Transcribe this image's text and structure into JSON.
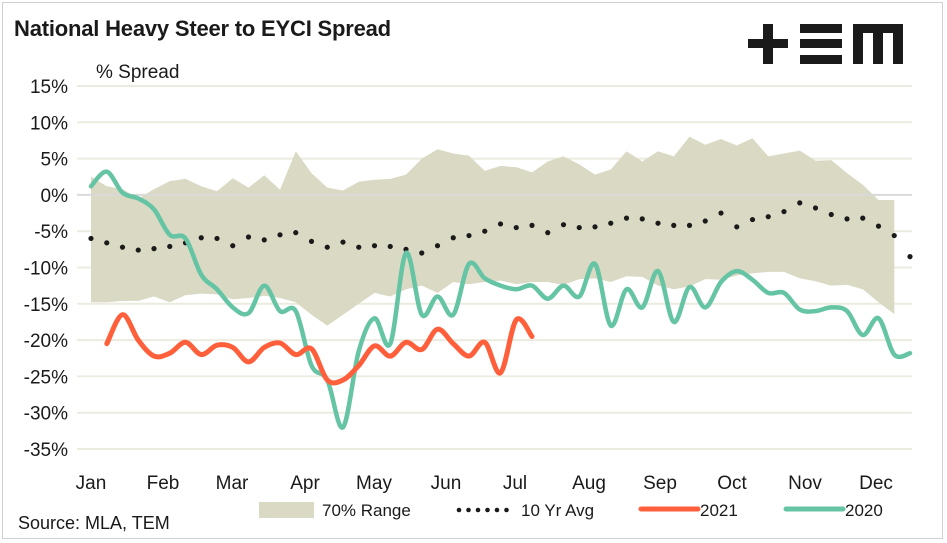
{
  "header": {
    "title": "National Heavy Steer to EYCI Spread",
    "logo_text": "+EM",
    "logo_icon": "tem-logo-icon"
  },
  "footer": {
    "source": "Source: MLA, TEM"
  },
  "colors": {
    "range_fill": "#d9d9c4",
    "avg_dots": "#1a1a1a",
    "series_2021": "#ff5f3a",
    "series_2020": "#64c4a4",
    "grid": "#ecebe0",
    "zero_line": "#d9d9d9"
  },
  "chart_data": {
    "type": "line",
    "title": "National Heavy Steer to EYCI Spread",
    "ylabel": "% Spread",
    "xlabel": "",
    "ylim": [
      -35,
      15
    ],
    "yticks": [
      15,
      10,
      5,
      0,
      -5,
      -10,
      -15,
      -20,
      -25,
      -30,
      -35
    ],
    "ytick_labels": [
      "15%",
      "10%",
      "5%",
      "0%",
      "-5%",
      "-10%",
      "-15%",
      "-20%",
      "-25%",
      "-30%",
      "-35%"
    ],
    "x_unit": "week of year",
    "xlim": [
      1,
      53
    ],
    "categories": [
      "Jan",
      "Feb",
      "Mar",
      "Apr",
      "May",
      "Jun",
      "Jul",
      "Aug",
      "Sep",
      "Oct",
      "Nov",
      "Dec"
    ],
    "grid": true,
    "legend_position": "bottom",
    "legend": [
      {
        "label": "70% Range",
        "kind": "area"
      },
      {
        "label": "10 Yr Avg",
        "kind": "dotted"
      },
      {
        "label": "2021",
        "kind": "line"
      },
      {
        "label": "2020",
        "kind": "line"
      }
    ],
    "range_upper": [
      2.5,
      1.2,
      0.8,
      -0.5,
      0.8,
      1.9,
      2.2,
      1.2,
      0.5,
      2.3,
      1.0,
      2.7,
      0.7,
      6.0,
      3.0,
      1.0,
      0.6,
      1.8,
      2.1,
      2.2,
      2.8,
      5.0,
      6.3,
      5.7,
      5.4,
      3.3,
      4.0,
      3.8,
      3.1,
      4.6,
      5.3,
      4.2,
      2.8,
      3.5,
      6.0,
      4.6,
      6.0,
      5.3,
      8.0,
      6.9,
      7.7,
      6.8,
      7.8,
      5.3,
      5.7,
      6.1,
      4.7,
      4.8,
      3.0,
      1.4,
      -0.7,
      -0.7
    ],
    "range_lower": [
      -14.8,
      -14.8,
      -14.6,
      -14.6,
      -14.0,
      -14.8,
      -13.8,
      -13.6,
      -13.7,
      -14.4,
      -14.2,
      -13.9,
      -14.2,
      -14.8,
      -16.5,
      -18.0,
      -16.5,
      -15.0,
      -13.5,
      -14.0,
      -13.0,
      -12.5,
      -13.5,
      -12.0,
      -12.3,
      -12.0,
      -11.8,
      -12.3,
      -12.0,
      -12.0,
      -12.4,
      -11.6,
      -11.5,
      -12.0,
      -11.2,
      -11.3,
      -12.5,
      -13.0,
      -12.6,
      -11.6,
      -11.7,
      -11.1,
      -10.8,
      -10.6,
      -10.6,
      -11.5,
      -11.9,
      -12.5,
      -12.4,
      -13.0,
      -14.8,
      -16.4
    ],
    "series": [
      {
        "name": "10 Yr Avg",
        "values": [
          -6.0,
          -6.6,
          -7.2,
          -7.6,
          -7.4,
          -7.1,
          -6.6,
          -5.9,
          -6.0,
          -7.0,
          -5.8,
          -6.2,
          -5.5,
          -5.2,
          -6.4,
          -7.2,
          -6.5,
          -7.2,
          -7.0,
          -7.1,
          -7.5,
          -8.0,
          -7.0,
          -5.9,
          -5.6,
          -5.0,
          -4.0,
          -4.5,
          -4.2,
          -5.2,
          -4.1,
          -4.5,
          -4.4,
          -3.9,
          -3.2,
          -3.3,
          -3.9,
          -4.2,
          -4.2,
          -3.6,
          -2.5,
          -4.4,
          -3.4,
          -3.0,
          -2.3,
          -1.1,
          -1.8,
          -2.7,
          -3.3,
          -3.2,
          -4.3,
          -5.6,
          -8.5
        ],
        "style": "dotted"
      },
      {
        "name": "2021",
        "values": [
          null,
          -20.5,
          -16.5,
          -20.0,
          -22.2,
          -21.8,
          -20.3,
          -22.0,
          -20.7,
          -21.0,
          -23.0,
          -21.0,
          -20.4,
          -22.0,
          -21.2,
          -25.5,
          -25.5,
          -23.5,
          -20.8,
          -22.2,
          -20.3,
          -21.3,
          -18.5,
          -20.5,
          -22.2,
          -20.3,
          -24.5,
          -17.2,
          -19.5
        ],
        "style": "solid"
      },
      {
        "name": "2020",
        "values": [
          1.2,
          3.2,
          0.3,
          -0.5,
          -2.0,
          -5.5,
          -6.0,
          -11.0,
          -13.0,
          -15.5,
          -16.3,
          -12.5,
          -16.0,
          -16.0,
          -23.5,
          -25.5,
          -32.0,
          -21.5,
          -17.0,
          -20.5,
          -8.0,
          -16.5,
          -14.0,
          -16.5,
          -9.5,
          -11.5,
          -12.5,
          -13.0,
          -12.5,
          -14.3,
          -12.5,
          -14.0,
          -9.5,
          -18.0,
          -13.0,
          -15.5,
          -10.5,
          -17.5,
          -12.7,
          -15.5,
          -12.0,
          -10.5,
          -11.7,
          -13.5,
          -13.5,
          -15.8,
          -16.0,
          -15.5,
          -16.0,
          -19.3,
          -17.0,
          -22.0,
          -21.8
        ],
        "style": "solid"
      }
    ]
  }
}
